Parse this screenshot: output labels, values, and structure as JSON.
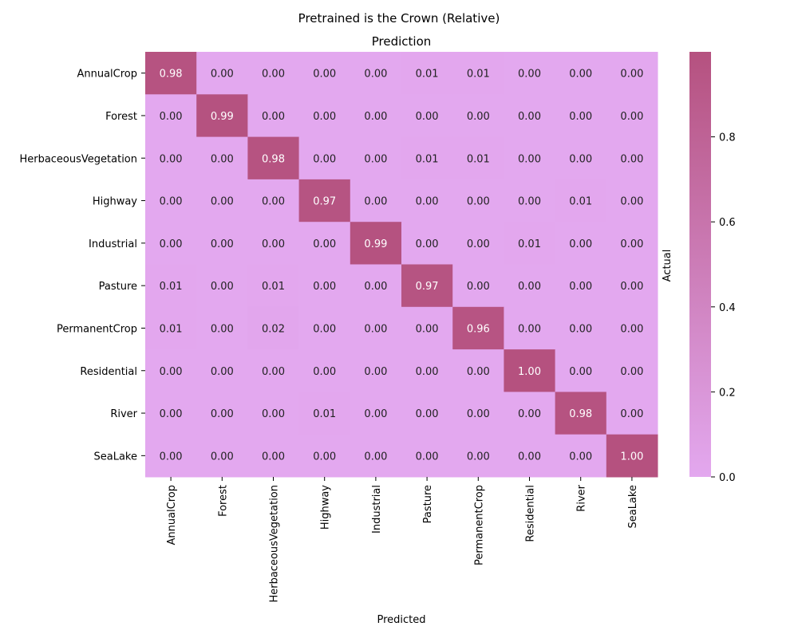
{
  "chart_data": {
    "type": "heatmap",
    "suptitle": "Pretrained is the Crown (Relative)",
    "title": "Prediction",
    "xlabel": "Predicted",
    "ylabel": "Actual",
    "rows": [
      "AnnualCrop",
      "Forest",
      "HerbaceousVegetation",
      "Highway",
      "Industrial",
      "Pasture",
      "PermanentCrop",
      "Residential",
      "River",
      "SeaLake"
    ],
    "columns": [
      "AnnualCrop",
      "Forest",
      "HerbaceousVegetation",
      "Highway",
      "Industrial",
      "Pasture",
      "PermanentCrop",
      "Residential",
      "River",
      "SeaLake"
    ],
    "values": [
      [
        0.98,
        0.0,
        0.0,
        0.0,
        0.0,
        0.01,
        0.01,
        0.0,
        0.0,
        0.0
      ],
      [
        0.0,
        0.99,
        0.0,
        0.0,
        0.0,
        0.0,
        0.0,
        0.0,
        0.0,
        0.0
      ],
      [
        0.0,
        0.0,
        0.98,
        0.0,
        0.0,
        0.01,
        0.01,
        0.0,
        0.0,
        0.0
      ],
      [
        0.0,
        0.0,
        0.0,
        0.97,
        0.0,
        0.0,
        0.0,
        0.0,
        0.01,
        0.0
      ],
      [
        0.0,
        0.0,
        0.0,
        0.0,
        0.99,
        0.0,
        0.0,
        0.01,
        0.0,
        0.0
      ],
      [
        0.01,
        0.0,
        0.01,
        0.0,
        0.0,
        0.97,
        0.0,
        0.0,
        0.0,
        0.0
      ],
      [
        0.01,
        0.0,
        0.02,
        0.0,
        0.0,
        0.0,
        0.96,
        0.0,
        0.0,
        0.0
      ],
      [
        0.0,
        0.0,
        0.0,
        0.0,
        0.0,
        0.0,
        0.0,
        1.0,
        0.0,
        0.0
      ],
      [
        0.0,
        0.0,
        0.0,
        0.01,
        0.0,
        0.0,
        0.0,
        0.0,
        0.98,
        0.0
      ],
      [
        0.0,
        0.0,
        0.0,
        0.0,
        0.0,
        0.0,
        0.0,
        0.0,
        0.0,
        1.0
      ]
    ],
    "value_format": "2 decimals",
    "colormap": {
      "low": "#e3a8ef",
      "high": "#b5517f"
    },
    "vmin": 0.0,
    "vmax": 1.0,
    "colorbar_ticks": [
      0.0,
      0.2,
      0.4,
      0.6,
      0.8
    ],
    "colorbar_tick_labels": [
      "0.0",
      "0.2",
      "0.4",
      "0.6",
      "0.8"
    ],
    "annotation_colors": {
      "light_cells": "#222222",
      "dark_cells": "#ffffff"
    }
  }
}
